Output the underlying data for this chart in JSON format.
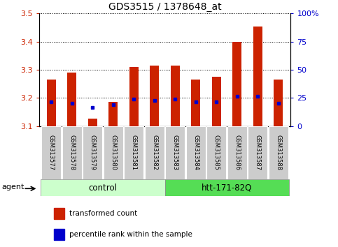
{
  "title": "GDS3515 / 1378648_at",
  "samples": [
    "GSM313577",
    "GSM313578",
    "GSM313579",
    "GSM313580",
    "GSM313581",
    "GSM313582",
    "GSM313583",
    "GSM313584",
    "GSM313585",
    "GSM313586",
    "GSM313587",
    "GSM313588"
  ],
  "red_values": [
    3.265,
    3.29,
    3.125,
    3.185,
    3.31,
    3.315,
    3.315,
    3.265,
    3.275,
    3.4,
    3.455,
    3.265
  ],
  "blue_values": [
    3.185,
    3.18,
    3.165,
    3.175,
    3.195,
    3.19,
    3.195,
    3.185,
    3.185,
    3.205,
    3.205,
    3.18
  ],
  "y_min": 3.1,
  "y_max": 3.5,
  "y_ticks": [
    3.1,
    3.2,
    3.3,
    3.4,
    3.5
  ],
  "right_y_ticks": [
    0,
    25,
    50,
    75,
    100
  ],
  "right_y_labels": [
    "0",
    "25",
    "50",
    "75",
    "100%"
  ],
  "bar_color": "#CC2200",
  "blue_color": "#0000CC",
  "bar_width": 0.45,
  "xlabel_color": "#CC2200",
  "right_axis_color": "#0000CC",
  "legend_red_label": "transformed count",
  "legend_blue_label": "percentile rank within the sample",
  "ctrl_color": "#CCFFCC",
  "htt_color": "#55DD55",
  "ctrl_label": "control",
  "htt_label": "htt-171-82Q",
  "agent_label": "agent"
}
